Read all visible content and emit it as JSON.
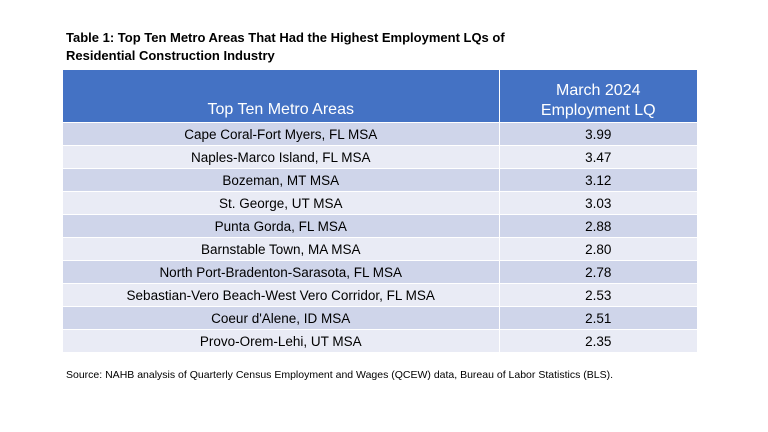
{
  "table": {
    "title_line1": "Table 1: Top Ten Metro Areas That Had the Highest Employment LQs of",
    "title_line2": "Residential Construction Industry",
    "header": {
      "col1": "Top Ten Metro Areas",
      "col2_line1": "March 2024",
      "col2_line2": "Employment LQ"
    },
    "rows": [
      {
        "area": "Cape Coral-Fort Myers, FL MSA",
        "lq": "3.99"
      },
      {
        "area": "Naples-Marco Island, FL MSA",
        "lq": "3.47"
      },
      {
        "area": "Bozeman, MT MSA",
        "lq": "3.12"
      },
      {
        "area": "St. George, UT MSA",
        "lq": "3.03"
      },
      {
        "area": "Punta Gorda, FL MSA",
        "lq": "2.88"
      },
      {
        "area": "Barnstable Town, MA MSA",
        "lq": "2.80"
      },
      {
        "area": "North Port-Bradenton-Sarasota, FL MSA",
        "lq": "2.78"
      },
      {
        "area": "Sebastian-Vero Beach-West Vero Corridor, FL MSA",
        "lq": "2.53"
      },
      {
        "area": "Coeur d'Alene, ID MSA",
        "lq": "2.51"
      },
      {
        "area": "Provo-Orem-Lehi, UT MSA",
        "lq": "2.35"
      }
    ],
    "source": "Source: NAHB analysis of Quarterly Census Employment and Wages (QCEW) data, Bureau of Labor Statistics (BLS)."
  },
  "colors": {
    "header_bg": "#4472c4",
    "row_odd": "#cfd5ea",
    "row_even": "#e9ebf5"
  }
}
